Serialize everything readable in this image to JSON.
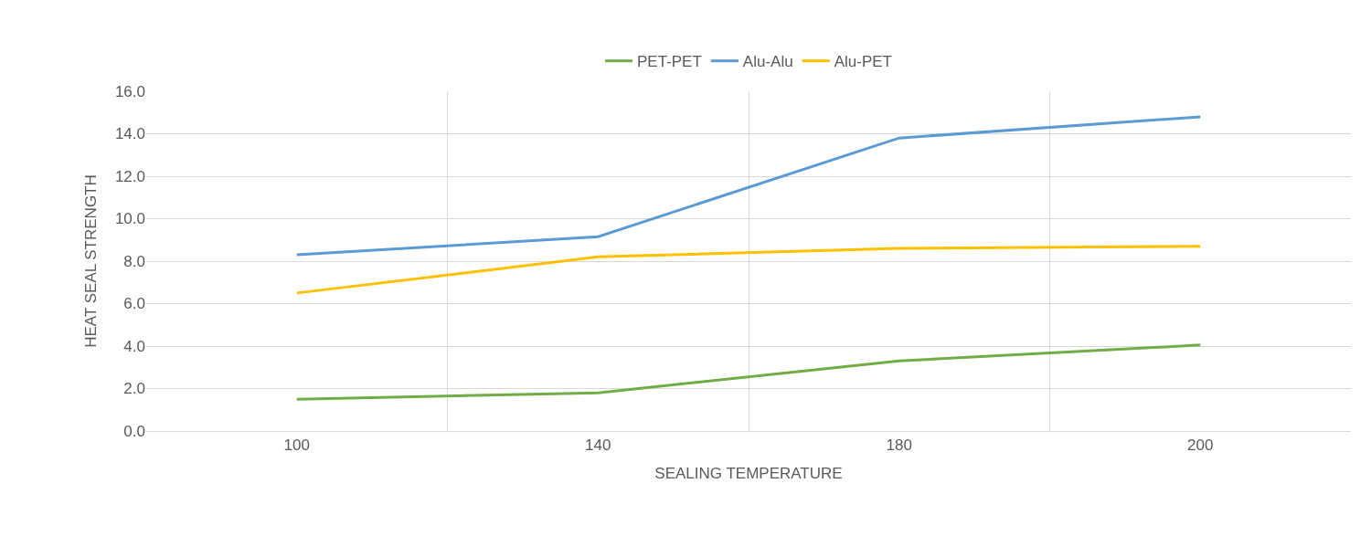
{
  "chart_data": {
    "type": "line",
    "xlabel": "SEALING TEMPERATURE",
    "ylabel": "HEAT SEAL STRENGTH",
    "categories": [
      "100",
      "140",
      "180",
      "200"
    ],
    "series": [
      {
        "name": "PET-PET",
        "color": "#70ad47",
        "values": [
          1.5,
          1.8,
          3.3,
          4.05
        ]
      },
      {
        "name": "Alu-Alu",
        "color": "#5b9bd5",
        "values": [
          8.3,
          9.15,
          13.8,
          14.8
        ]
      },
      {
        "name": "Alu-PET",
        "color": "#ffc000",
        "values": [
          6.5,
          8.2,
          8.6,
          8.7
        ]
      }
    ],
    "ylim": [
      0,
      16
    ],
    "yticks": [
      {
        "value": 0,
        "label": "0.0"
      },
      {
        "value": 2,
        "label": "2.0"
      },
      {
        "value": 4,
        "label": "4.0"
      },
      {
        "value": 6,
        "label": "6.0"
      },
      {
        "value": 8,
        "label": "8.0"
      },
      {
        "value": 10,
        "label": "10.0"
      },
      {
        "value": 12,
        "label": "12.0"
      },
      {
        "value": 14,
        "label": "14.0"
      },
      {
        "value": 16,
        "label": "16.0"
      }
    ],
    "grid": true,
    "legend": "top",
    "marker": "none",
    "line_style": "solid"
  }
}
